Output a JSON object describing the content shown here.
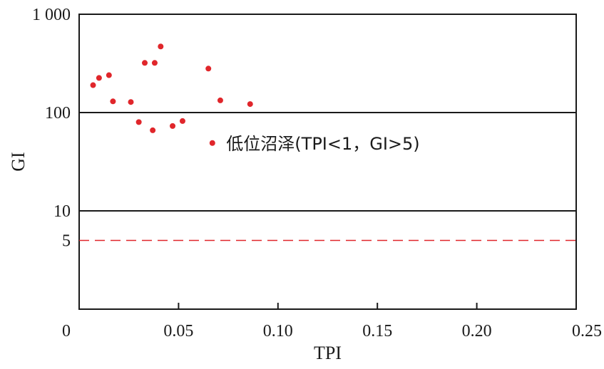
{
  "chart_data": {
    "type": "scatter",
    "xlabel": "TPI",
    "ylabel": "GI",
    "xlim": [
      0,
      0.25
    ],
    "ylim": [
      1,
      1000
    ],
    "y_scale": "log",
    "grid": false,
    "x_ticks": [
      {
        "value": 0,
        "label": "0"
      },
      {
        "value": 0.05,
        "label": "0.05"
      },
      {
        "value": 0.1,
        "label": "0.10"
      },
      {
        "value": 0.15,
        "label": "0.15"
      },
      {
        "value": 0.2,
        "label": "0.20"
      },
      {
        "value": 0.25,
        "label": "0.25"
      }
    ],
    "y_ticks": [
      {
        "value": 5,
        "label": "5"
      },
      {
        "value": 10,
        "label": "10"
      },
      {
        "value": 100,
        "label": "100"
      },
      {
        "value": 1000,
        "label": "1 000"
      }
    ],
    "reference_lines": [
      {
        "axis": "y",
        "value": 100,
        "style": "solid",
        "color": "#1a1a1a"
      },
      {
        "axis": "y",
        "value": 10,
        "style": "solid",
        "color": "#1a1a1a"
      },
      {
        "axis": "y",
        "value": 5,
        "style": "dashed",
        "color": "#e0262b"
      }
    ],
    "point_color": "#e0262b",
    "points": [
      {
        "x": 0.007,
        "y": 190
      },
      {
        "x": 0.01,
        "y": 225
      },
      {
        "x": 0.015,
        "y": 240
      },
      {
        "x": 0.017,
        "y": 130
      },
      {
        "x": 0.026,
        "y": 128
      },
      {
        "x": 0.03,
        "y": 80
      },
      {
        "x": 0.033,
        "y": 320
      },
      {
        "x": 0.037,
        "y": 66
      },
      {
        "x": 0.038,
        "y": 320
      },
      {
        "x": 0.041,
        "y": 470
      },
      {
        "x": 0.047,
        "y": 73
      },
      {
        "x": 0.052,
        "y": 82
      },
      {
        "x": 0.065,
        "y": 280
      },
      {
        "x": 0.067,
        "y": 49
      },
      {
        "x": 0.071,
        "y": 133
      },
      {
        "x": 0.086,
        "y": 122
      }
    ],
    "annotations": [
      {
        "text": "低位沼泽(TPI<1，GI>5)",
        "x": 0.074,
        "y": 42
      }
    ]
  }
}
